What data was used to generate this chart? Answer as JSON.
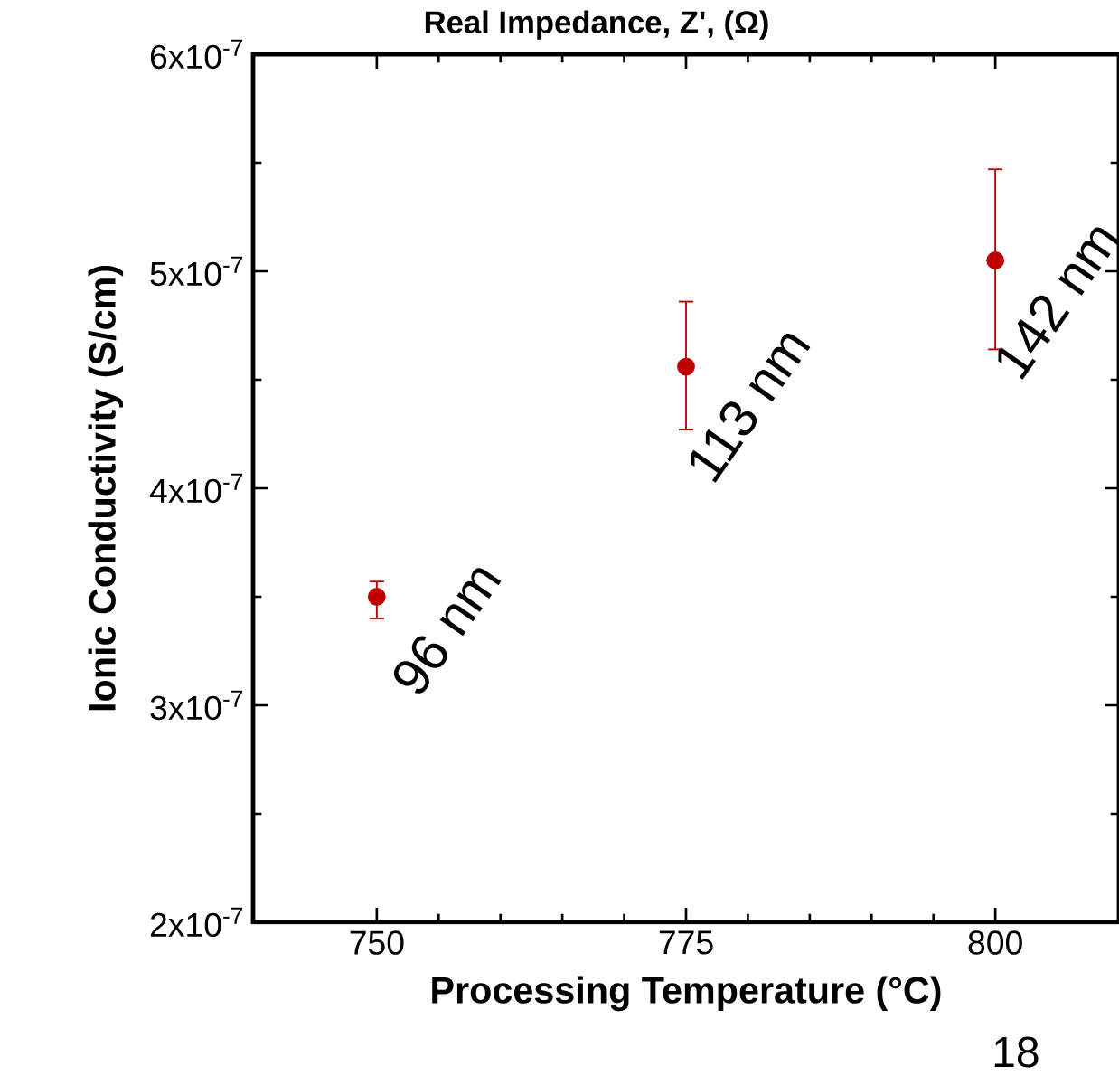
{
  "chart_data": {
    "type": "scatter",
    "xlabel": "Processing Temperature (°C)",
    "ylabel": "Ionic Conductivity (S/cm)",
    "x": [
      750,
      775,
      800
    ],
    "values": [
      3.5e-07,
      4.56e-07,
      5.05e-07
    ],
    "errors": [
      [
        3.4e-07,
        3.57e-07
      ],
      [
        4.27e-07,
        4.86e-07
      ],
      [
        4.64e-07,
        5.47e-07
      ]
    ],
    "color": "#c00000",
    "grid": false,
    "xlim": [
      740,
      810
    ],
    "xticks": [
      750,
      775,
      800
    ],
    "ylim": [
      2e-07,
      6e-07
    ],
    "yticks": [
      {
        "value": 2e-07,
        "label": "2x10$^{-7}$"
      },
      {
        "value": 3e-07,
        "label": "3x10$^{-7}$"
      },
      {
        "value": 4e-07,
        "label": "4x10$^{-7}$"
      },
      {
        "value": 5e-07,
        "label": "5x10$^{-7}$"
      },
      {
        "value": 6e-07,
        "label": "6x10$^{-7}$"
      }
    ],
    "annotations": [
      {
        "text": "96 nm",
        "x": 750,
        "y": 3.48e-07
      },
      {
        "text": "113 nm",
        "x": 775,
        "y": 4.56e-07
      },
      {
        "text": "142 nm",
        "x": 800,
        "y": 5.05e-07
      },
      "Real Impedance, Z', (Ω)",
      "18"
    ]
  }
}
